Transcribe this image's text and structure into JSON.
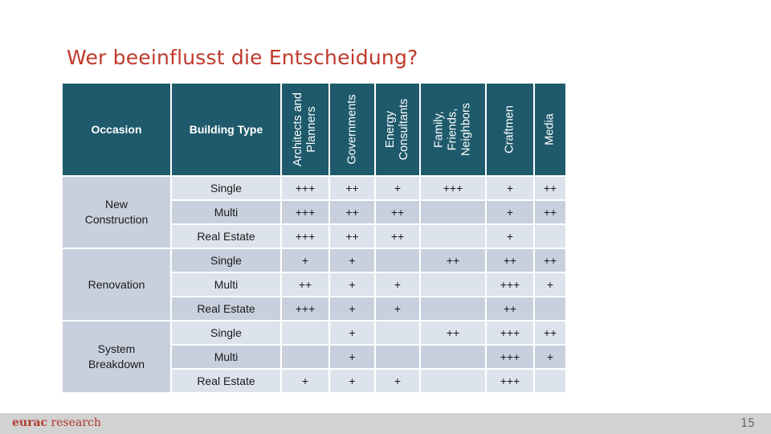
{
  "title": "Wer beeinflusst die Entscheidung?",
  "table": {
    "headers": {
      "occasion": "Occasion",
      "building_type": "Building Type",
      "architects": [
        "Architects and",
        "Planners"
      ],
      "governments": [
        "Governments"
      ],
      "energy": [
        "Energy",
        "Consultants"
      ],
      "family": [
        "Family,",
        "Friends,",
        "Neighbors"
      ],
      "craftmen": [
        "Craftmen"
      ],
      "media": [
        "Media"
      ]
    },
    "groups": [
      {
        "occasion": [
          "New",
          "Construction"
        ],
        "rows": [
          {
            "building_type": "Single",
            "architects": "+++",
            "governments": "++",
            "energy": "+",
            "family": "+++",
            "craftmen": "+",
            "media": "++"
          },
          {
            "building_type": "Multi",
            "architects": "+++",
            "governments": "++",
            "energy": "++",
            "family": "",
            "craftmen": "+",
            "media": "++"
          },
          {
            "building_type": "Real Estate",
            "architects": "+++",
            "governments": "++",
            "energy": "++",
            "family": "",
            "craftmen": "+",
            "media": ""
          }
        ]
      },
      {
        "occasion": [
          "Renovation"
        ],
        "rows": [
          {
            "building_type": "Single",
            "architects": "+",
            "governments": "+",
            "energy": "",
            "family": "++",
            "craftmen": "++",
            "media": "++"
          },
          {
            "building_type": "Multi",
            "architects": "++",
            "governments": "+",
            "energy": "+",
            "family": "",
            "craftmen": "+++",
            "media": "+"
          },
          {
            "building_type": "Real Estate",
            "architects": "+++",
            "governments": "+",
            "energy": "+",
            "family": "",
            "craftmen": "++",
            "media": ""
          }
        ]
      },
      {
        "occasion": [
          "System",
          "Breakdown"
        ],
        "rows": [
          {
            "building_type": "Single",
            "architects": "",
            "governments": "+",
            "energy": "",
            "family": "++",
            "craftmen": "+++",
            "media": "++"
          },
          {
            "building_type": "Multi",
            "architects": "",
            "governments": "+",
            "energy": "",
            "family": "",
            "craftmen": "+++",
            "media": "+"
          },
          {
            "building_type": "Real Estate",
            "architects": "+",
            "governments": "+",
            "energy": "+",
            "family": "",
            "craftmen": "+++",
            "media": ""
          }
        ]
      }
    ]
  },
  "footer": {
    "logo_brand": "eurac",
    "logo_word": "research",
    "page_number": "15"
  }
}
